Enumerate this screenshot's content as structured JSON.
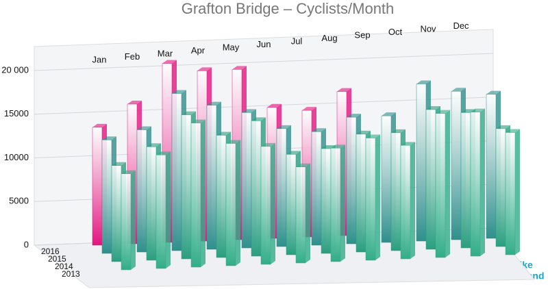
{
  "chart_data": {
    "type": "bar3d",
    "title": "Grafton Bridge – Cyclists/Month",
    "categories": [
      "Jan",
      "Feb",
      "Mar",
      "Apr",
      "May",
      "Jun",
      "Jul",
      "Aug",
      "Sep",
      "Oct",
      "Nov",
      "Dec"
    ],
    "series": [
      {
        "name": "2016",
        "color": "#e4147f",
        "values": [
          13500,
          16000,
          20500,
          19500,
          19500,
          15000,
          14500,
          16500,
          null,
          null,
          null,
          null
        ]
      },
      {
        "name": "2015",
        "color": "#2f8f8c",
        "values": [
          13000,
          14000,
          18000,
          16500,
          15500,
          13500,
          13000,
          14500,
          14500,
          18000,
          17000,
          16500
        ]
      },
      {
        "name": "2014",
        "color": "#2a9e80",
        "values": [
          11000,
          13000,
          16500,
          14000,
          15500,
          11500,
          12000,
          13500,
          13500,
          16000,
          15500,
          13500
        ]
      },
      {
        "name": "2013",
        "color": "#31ad88",
        "values": [
          11000,
          13000,
          16500,
          14000,
          13500,
          11000,
          13000,
          14000,
          13000,
          16500,
          16500,
          14000
        ]
      }
    ],
    "ylim": [
      0,
      20000
    ],
    "yticks": [
      0,
      5000,
      10000,
      15000,
      {
        "value": 20000,
        "label": "20 000"
      }
    ],
    "grid": true,
    "logo": [
      "Bike",
      "Auckland"
    ]
  }
}
